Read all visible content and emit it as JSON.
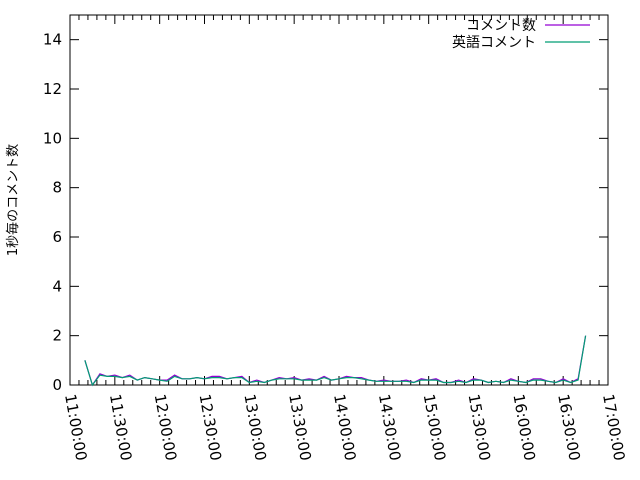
{
  "chart_data": {
    "type": "line",
    "title": "",
    "xlabel": "",
    "ylabel": "1秒毎のコメント数",
    "xlim": [
      "11:00:00",
      "17:00:00"
    ],
    "ylim": [
      0,
      15
    ],
    "xticks": [
      "11:00:00",
      "11:30:00",
      "12:00:00",
      "12:30:00",
      "13:00:00",
      "13:30:00",
      "14:00:00",
      "14:30:00",
      "15:00:00",
      "15:30:00",
      "16:00:00",
      "16:30:00",
      "17:00:00"
    ],
    "yticks": [
      "0",
      "2",
      "4",
      "6",
      "8",
      "10",
      "12",
      "14"
    ],
    "legend_position": "top-right",
    "grid": false,
    "x": [
      "11:10",
      "11:15",
      "11:20",
      "11:25",
      "11:30",
      "11:35",
      "11:40",
      "11:45",
      "11:50",
      "11:55",
      "12:00",
      "12:05",
      "12:10",
      "12:15",
      "12:20",
      "12:25",
      "12:30",
      "12:35",
      "12:40",
      "12:45",
      "12:50",
      "12:55",
      "13:00",
      "13:05",
      "13:10",
      "13:15",
      "13:20",
      "13:25",
      "13:30",
      "13:35",
      "13:40",
      "13:45",
      "13:50",
      "13:55",
      "14:00",
      "14:05",
      "14:10",
      "14:15",
      "14:20",
      "14:25",
      "14:30",
      "14:35",
      "14:40",
      "14:45",
      "14:50",
      "14:55",
      "15:00",
      "15:05",
      "15:10",
      "15:15",
      "15:20",
      "15:25",
      "15:30",
      "15:35",
      "15:40",
      "15:45",
      "15:50",
      "15:55",
      "16:00",
      "16:05",
      "16:10",
      "16:15",
      "16:20",
      "16:25",
      "16:30",
      "16:35",
      "16:40",
      "16:45"
    ],
    "series": [
      {
        "name": "コメント数",
        "color": "#9400d3",
        "values": [
          1,
          0,
          0.45,
          0.35,
          0.4,
          0.3,
          0.4,
          0.2,
          0.3,
          0.25,
          0.2,
          0.2,
          0.4,
          0.25,
          0.25,
          0.3,
          0.25,
          0.35,
          0.35,
          0.25,
          0.3,
          0.35,
          0.1,
          0.2,
          0.1,
          0.2,
          0.3,
          0.25,
          0.3,
          0.2,
          0.25,
          0.2,
          0.35,
          0.2,
          0.25,
          0.35,
          0.3,
          0.3,
          0.2,
          0.15,
          0.2,
          0.15,
          0.15,
          0.2,
          0.1,
          0.25,
          0.2,
          0.25,
          0.1,
          0.1,
          0.2,
          0.1,
          0.25,
          0.2,
          0.1,
          0.15,
          0.1,
          0.25,
          0.15,
          0.1,
          0.25,
          0.25,
          0.15,
          0.1,
          0.25,
          0.1,
          0.25,
          2
        ]
      },
      {
        "name": "英語コメント",
        "color": "#009e73",
        "values": [
          1,
          0,
          0.4,
          0.35,
          0.35,
          0.3,
          0.35,
          0.2,
          0.3,
          0.25,
          0.2,
          0.15,
          0.35,
          0.25,
          0.25,
          0.3,
          0.25,
          0.3,
          0.3,
          0.25,
          0.3,
          0.3,
          0.1,
          0.15,
          0.1,
          0.2,
          0.25,
          0.25,
          0.25,
          0.2,
          0.2,
          0.2,
          0.3,
          0.2,
          0.25,
          0.3,
          0.3,
          0.25,
          0.2,
          0.15,
          0.15,
          0.15,
          0.15,
          0.15,
          0.1,
          0.2,
          0.2,
          0.2,
          0.1,
          0.1,
          0.15,
          0.1,
          0.2,
          0.2,
          0.1,
          0.15,
          0.1,
          0.2,
          0.15,
          0.1,
          0.2,
          0.2,
          0.15,
          0.1,
          0.2,
          0.1,
          0.2,
          2
        ]
      }
    ]
  }
}
